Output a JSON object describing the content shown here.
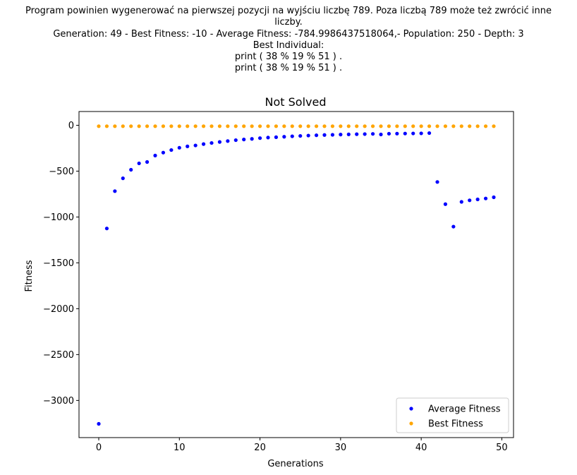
{
  "suptitle_lines": [
    "Program powinien wygenerować na pierwszej pozycji na wyjściu liczbę 789. Poza liczbą 789 może też zwrócić inne",
    "liczby.",
    "Generation: 49 - Best Fitness: -10 - Average Fitness: -784.9986437518064,- Population: 250 - Depth: 3",
    "Best Individual:",
    "print ( 38 % 19 % 51 ) .",
    "print ( 38 % 19 % 51 ) ."
  ],
  "chart_data": {
    "type": "scatter",
    "title": "Not Solved",
    "xlabel": "Generations",
    "ylabel": "Fitness",
    "xlim": [
      -2.45,
      51.45
    ],
    "ylim": [
      -3405,
      150
    ],
    "xticks": [
      0,
      10,
      20,
      30,
      40,
      50
    ],
    "xtick_labels": [
      "0",
      "10",
      "20",
      "30",
      "40",
      "50"
    ],
    "yticks": [
      0,
      -500,
      -1000,
      -1500,
      -2000,
      -2500,
      -3000
    ],
    "ytick_labels": [
      "0",
      "−500",
      "−1000",
      "−1500",
      "−2000",
      "−2500",
      "−3000"
    ],
    "grid": false,
    "legend_position": "lower-right",
    "x": [
      0,
      1,
      2,
      3,
      4,
      5,
      6,
      7,
      8,
      9,
      10,
      11,
      12,
      13,
      14,
      15,
      16,
      17,
      18,
      19,
      20,
      21,
      22,
      23,
      24,
      25,
      26,
      27,
      28,
      29,
      30,
      31,
      32,
      33,
      34,
      35,
      36,
      37,
      38,
      39,
      40,
      41,
      42,
      43,
      44,
      45,
      46,
      47,
      48,
      49
    ],
    "series": [
      {
        "name": "Average Fitness",
        "color": "#0000ff",
        "values": [
          -3255,
          -1125,
          -718,
          -578,
          -485,
          -415,
          -400,
          -330,
          -298,
          -270,
          -245,
          -230,
          -220,
          -205,
          -193,
          -182,
          -172,
          -162,
          -155,
          -148,
          -140,
          -134,
          -130,
          -125,
          -120,
          -116,
          -112,
          -109,
          -106,
          -104,
          -101,
          -99,
          -97,
          -96,
          -94,
          -100,
          -92,
          -91,
          -90,
          -89,
          -88,
          -85,
          -618,
          -860,
          -1105,
          -835,
          -818,
          -808,
          -798,
          -785
        ]
      },
      {
        "name": "Best Fitness",
        "color": "#ffa500",
        "values": [
          -10,
          -10,
          -10,
          -10,
          -10,
          -10,
          -10,
          -10,
          -10,
          -10,
          -10,
          -10,
          -10,
          -10,
          -10,
          -10,
          -10,
          -10,
          -10,
          -10,
          -10,
          -10,
          -10,
          -10,
          -10,
          -10,
          -10,
          -10,
          -10,
          -10,
          -10,
          -10,
          -10,
          -10,
          -10,
          -10,
          -10,
          -10,
          -10,
          -10,
          -10,
          -10,
          -10,
          -10,
          -10,
          -10,
          -10,
          -10,
          -10,
          -10
        ]
      }
    ]
  }
}
